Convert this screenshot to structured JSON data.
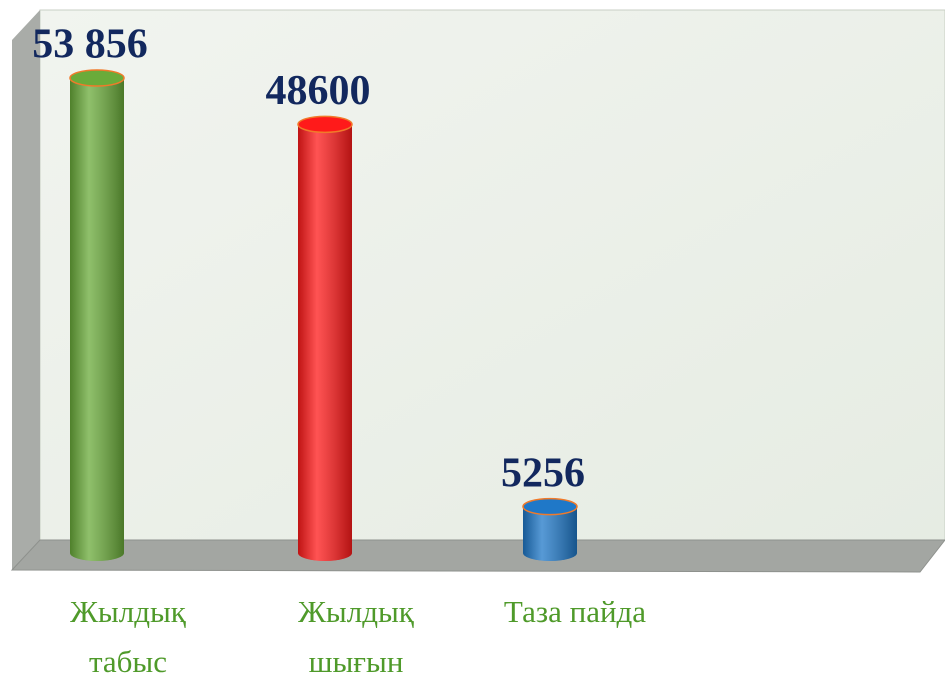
{
  "chart_data": {
    "type": "bar3d",
    "categories": [
      "Жылдық табыс",
      "Жылдық шығын",
      "Таза пайда"
    ],
    "values": [
      53856,
      48600,
      5256
    ],
    "value_labels": [
      "53 856",
      "48600",
      "5256"
    ],
    "colors": [
      "#6aab3a",
      "#ff1a1a",
      "#1f78c8"
    ]
  }
}
